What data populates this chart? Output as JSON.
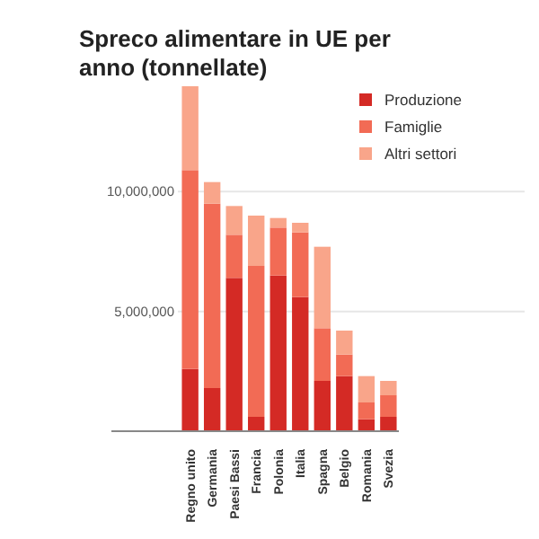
{
  "chart_data": {
    "type": "bar",
    "title": "Spreco alimentare in UE per anno (tonnellate)",
    "stacked": true,
    "categories": [
      "Regno unito",
      "Germania",
      "Paesi Bassi",
      "Francia",
      "Polonia",
      "Italia",
      "Spagna",
      "Belgio",
      "Romania",
      "Svezia"
    ],
    "series": [
      {
        "name": "Produzione",
        "color": "#d42a25",
        "values": [
          2600000,
          1800000,
          6400000,
          600000,
          6500000,
          5600000,
          2100000,
          2300000,
          500000,
          600000
        ]
      },
      {
        "name": "Famiglie",
        "color": "#f26b55",
        "values": [
          8300000,
          7700000,
          1800000,
          6300000,
          2000000,
          2700000,
          2200000,
          900000,
          700000,
          900000
        ]
      },
      {
        "name": "Altri settori",
        "color": "#f9a58a",
        "values": [
          3500000,
          900000,
          1200000,
          2100000,
          400000,
          400000,
          3400000,
          1000000,
          1100000,
          600000
        ]
      }
    ],
    "ylim": [
      0,
      14400000
    ],
    "yticks": [
      {
        "value": 5000000,
        "label": "5,000,000"
      },
      {
        "value": 10000000,
        "label": "10,000,000"
      }
    ],
    "grid": "y",
    "legend": "top right"
  }
}
